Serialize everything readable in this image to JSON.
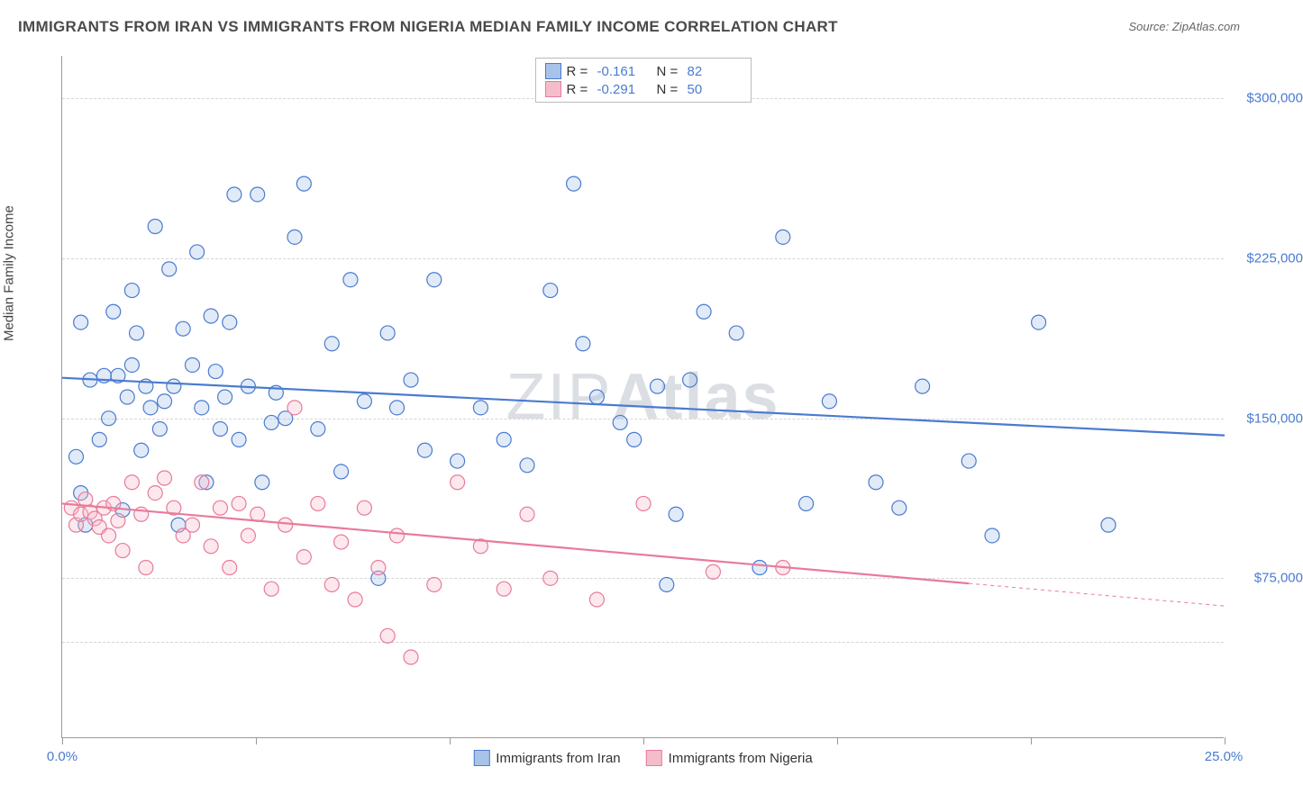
{
  "title": "IMMIGRANTS FROM IRAN VS IMMIGRANTS FROM NIGERIA MEDIAN FAMILY INCOME CORRELATION CHART",
  "source_label": "Source: ZipAtlas.com",
  "ylabel": "Median Family Income",
  "watermark_light": "ZIP",
  "watermark_bold": "Atlas",
  "chart": {
    "type": "scatter",
    "xlim": [
      0,
      25
    ],
    "ylim": [
      0,
      320000
    ],
    "xtick_positions": [
      0,
      4.17,
      8.33,
      12.5,
      16.67,
      20.83,
      25
    ],
    "xtick_labels": {
      "first": "0.0%",
      "last": "25.0%"
    },
    "ytick_positions": [
      75000,
      150000,
      225000,
      300000
    ],
    "ytick_labels": [
      "$75,000",
      "$150,000",
      "$225,000",
      "$300,000"
    ],
    "gridline_y": [
      45000,
      75000,
      150000,
      225000,
      300000
    ],
    "background_color": "#ffffff",
    "grid_color": "#d5d5d5",
    "axis_color": "#999999",
    "tick_label_color": "#4a7bd0",
    "marker_radius": 8,
    "marker_stroke_width": 1.2,
    "marker_fill_opacity": 0.35,
    "trendline_width": 2.2,
    "series": [
      {
        "name": "Immigrants from Iran",
        "color_stroke": "#4a7bd0",
        "color_fill": "#a9c3e8",
        "R": "-0.161",
        "N": "82",
        "trendline": {
          "x1": 0,
          "y1": 169000,
          "x2": 25,
          "y2": 142000,
          "dash_from_x": null
        },
        "points": [
          [
            0.3,
            132000
          ],
          [
            0.4,
            115000
          ],
          [
            0.4,
            195000
          ],
          [
            0.5,
            100000
          ],
          [
            0.6,
            168000
          ],
          [
            0.8,
            140000
          ],
          [
            0.9,
            170000
          ],
          [
            1.0,
            150000
          ],
          [
            1.1,
            200000
          ],
          [
            1.2,
            170000
          ],
          [
            1.3,
            107000
          ],
          [
            1.4,
            160000
          ],
          [
            1.5,
            175000
          ],
          [
            1.5,
            210000
          ],
          [
            1.6,
            190000
          ],
          [
            1.7,
            135000
          ],
          [
            1.8,
            165000
          ],
          [
            1.9,
            155000
          ],
          [
            2.0,
            240000
          ],
          [
            2.1,
            145000
          ],
          [
            2.2,
            158000
          ],
          [
            2.3,
            220000
          ],
          [
            2.4,
            165000
          ],
          [
            2.5,
            100000
          ],
          [
            2.6,
            192000
          ],
          [
            2.8,
            175000
          ],
          [
            2.9,
            228000
          ],
          [
            3.0,
            155000
          ],
          [
            3.1,
            120000
          ],
          [
            3.2,
            198000
          ],
          [
            3.3,
            172000
          ],
          [
            3.4,
            145000
          ],
          [
            3.5,
            160000
          ],
          [
            3.6,
            195000
          ],
          [
            3.7,
            255000
          ],
          [
            3.8,
            140000
          ],
          [
            4.0,
            165000
          ],
          [
            4.2,
            255000
          ],
          [
            4.3,
            120000
          ],
          [
            4.5,
            148000
          ],
          [
            4.6,
            162000
          ],
          [
            4.8,
            150000
          ],
          [
            5.0,
            235000
          ],
          [
            5.2,
            260000
          ],
          [
            5.5,
            145000
          ],
          [
            5.8,
            185000
          ],
          [
            6.0,
            125000
          ],
          [
            6.2,
            215000
          ],
          [
            6.5,
            158000
          ],
          [
            6.8,
            75000
          ],
          [
            7.0,
            190000
          ],
          [
            7.2,
            155000
          ],
          [
            7.5,
            168000
          ],
          [
            7.8,
            135000
          ],
          [
            8.0,
            215000
          ],
          [
            8.5,
            130000
          ],
          [
            9.0,
            155000
          ],
          [
            9.5,
            140000
          ],
          [
            10.0,
            128000
          ],
          [
            10.5,
            210000
          ],
          [
            11.0,
            260000
          ],
          [
            11.2,
            185000
          ],
          [
            11.5,
            160000
          ],
          [
            12.0,
            148000
          ],
          [
            12.3,
            140000
          ],
          [
            12.8,
            165000
          ],
          [
            13.0,
            72000
          ],
          [
            13.2,
            105000
          ],
          [
            13.5,
            168000
          ],
          [
            13.8,
            200000
          ],
          [
            14.5,
            190000
          ],
          [
            15.0,
            80000
          ],
          [
            15.5,
            235000
          ],
          [
            16.0,
            110000
          ],
          [
            16.5,
            158000
          ],
          [
            17.5,
            120000
          ],
          [
            18.0,
            108000
          ],
          [
            18.5,
            165000
          ],
          [
            19.5,
            130000
          ],
          [
            20.0,
            95000
          ],
          [
            21.0,
            195000
          ],
          [
            22.5,
            100000
          ]
        ]
      },
      {
        "name": "Immigrants from Nigeria",
        "color_stroke": "#e87b9a",
        "color_fill": "#f5bccb",
        "R": "-0.291",
        "N": "50",
        "trendline": {
          "x1": 0,
          "y1": 110000,
          "x2": 25,
          "y2": 62000,
          "dash_from_x": 19.5
        },
        "points": [
          [
            0.2,
            108000
          ],
          [
            0.3,
            100000
          ],
          [
            0.4,
            105000
          ],
          [
            0.5,
            112000
          ],
          [
            0.6,
            106000
          ],
          [
            0.7,
            103000
          ],
          [
            0.8,
            99000
          ],
          [
            0.9,
            108000
          ],
          [
            1.0,
            95000
          ],
          [
            1.1,
            110000
          ],
          [
            1.2,
            102000
          ],
          [
            1.3,
            88000
          ],
          [
            1.5,
            120000
          ],
          [
            1.7,
            105000
          ],
          [
            1.8,
            80000
          ],
          [
            2.0,
            115000
          ],
          [
            2.2,
            122000
          ],
          [
            2.4,
            108000
          ],
          [
            2.6,
            95000
          ],
          [
            2.8,
            100000
          ],
          [
            3.0,
            120000
          ],
          [
            3.2,
            90000
          ],
          [
            3.4,
            108000
          ],
          [
            3.6,
            80000
          ],
          [
            3.8,
            110000
          ],
          [
            4.0,
            95000
          ],
          [
            4.2,
            105000
          ],
          [
            4.5,
            70000
          ],
          [
            4.8,
            100000
          ],
          [
            5.0,
            155000
          ],
          [
            5.2,
            85000
          ],
          [
            5.5,
            110000
          ],
          [
            5.8,
            72000
          ],
          [
            6.0,
            92000
          ],
          [
            6.3,
            65000
          ],
          [
            6.5,
            108000
          ],
          [
            6.8,
            80000
          ],
          [
            7.0,
            48000
          ],
          [
            7.2,
            95000
          ],
          [
            7.5,
            38000
          ],
          [
            8.0,
            72000
          ],
          [
            8.5,
            120000
          ],
          [
            9.0,
            90000
          ],
          [
            9.5,
            70000
          ],
          [
            10.0,
            105000
          ],
          [
            10.5,
            75000
          ],
          [
            11.5,
            65000
          ],
          [
            12.5,
            110000
          ],
          [
            14.0,
            78000
          ],
          [
            15.5,
            80000
          ]
        ]
      }
    ]
  },
  "legend_top": {
    "R_label": "R  =",
    "N_label": "N  ="
  },
  "legend_bottom": [
    {
      "label": "Immigrants from Iran",
      "fill": "#a9c3e8",
      "stroke": "#4a7bd0"
    },
    {
      "label": "Immigrants from Nigeria",
      "fill": "#f5bccb",
      "stroke": "#e87b9a"
    }
  ]
}
